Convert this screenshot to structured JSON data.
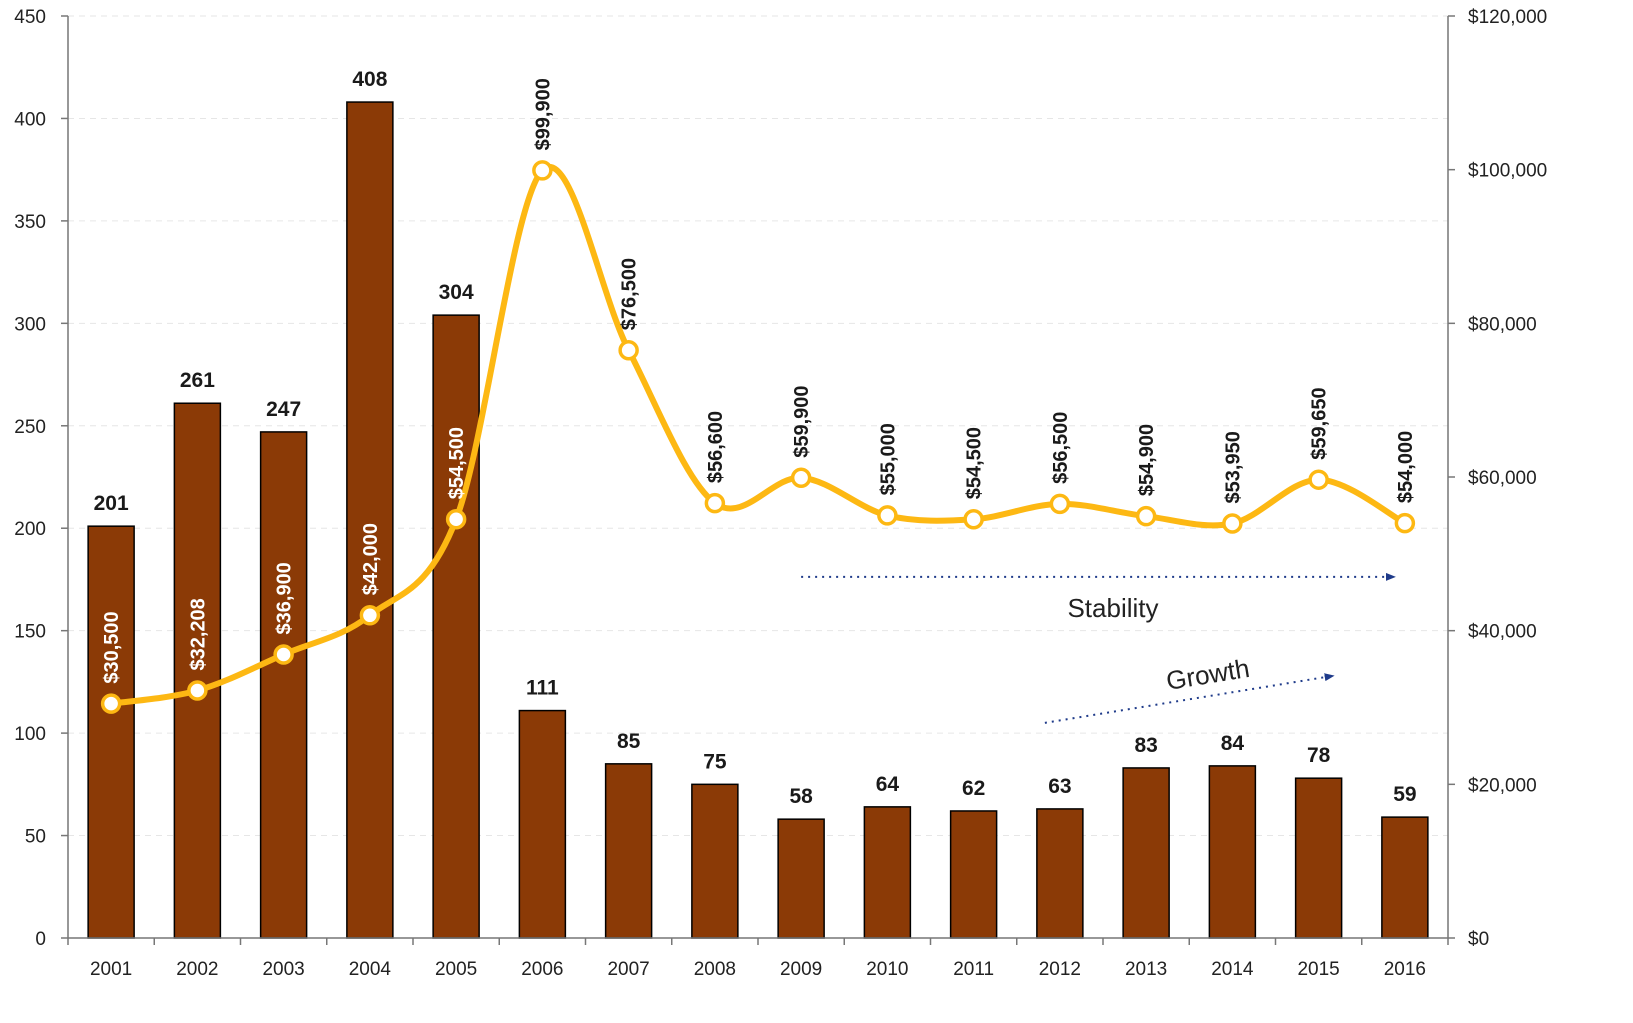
{
  "chart_data": {
    "type": "bar",
    "categories": [
      "2001",
      "2002",
      "2003",
      "2004",
      "2005",
      "2006",
      "2007",
      "2008",
      "2009",
      "2010",
      "2011",
      "2012",
      "2013",
      "2014",
      "2015",
      "2016"
    ],
    "series": [
      {
        "type": "bar",
        "axis": "left",
        "color": "#8B3A06",
        "values": [
          201,
          261,
          247,
          408,
          304,
          111,
          85,
          75,
          58,
          64,
          62,
          63,
          83,
          84,
          78,
          59
        ],
        "labels": [
          "201",
          "261",
          "247",
          "408",
          "304",
          "111",
          "85",
          "75",
          "58",
          "64",
          "62",
          "63",
          "83",
          "84",
          "78",
          "59"
        ]
      },
      {
        "type": "line",
        "axis": "right",
        "color": "#FDB813",
        "values": [
          30500,
          32208,
          36900,
          42000,
          54500,
          99900,
          76500,
          56600,
          59900,
          55000,
          54500,
          56500,
          54900,
          53950,
          59650,
          54000
        ],
        "labels": [
          "$30,500",
          "$32,208",
          "$36,900",
          "$42,000",
          "$54,500",
          "$99,900",
          "$76,500",
          "$56,600",
          "$59,900",
          "$55,000",
          "$54,500",
          "$56,500",
          "$54,900",
          "$53,950",
          "$59,650",
          "$54,000"
        ]
      }
    ],
    "y_left": {
      "range": [
        0,
        450
      ],
      "ticks": [
        "0",
        "50",
        "100",
        "150",
        "200",
        "250",
        "300",
        "350",
        "400",
        "450"
      ]
    },
    "y_right": {
      "range": [
        0,
        120000
      ],
      "ticks": [
        "$0",
        "$20,000",
        "$40,000",
        "$60,000",
        "$80,000",
        "$100,000",
        "$120,000"
      ]
    },
    "grid": true,
    "annotations": [
      {
        "text": "Stability",
        "from_category": "2009",
        "to_category": "2016",
        "value_right": 47000
      },
      {
        "text": "Growth",
        "from_category": "2012",
        "to_category": "2015",
        "value_left_start": 105,
        "value_left_end": 128
      }
    ]
  }
}
